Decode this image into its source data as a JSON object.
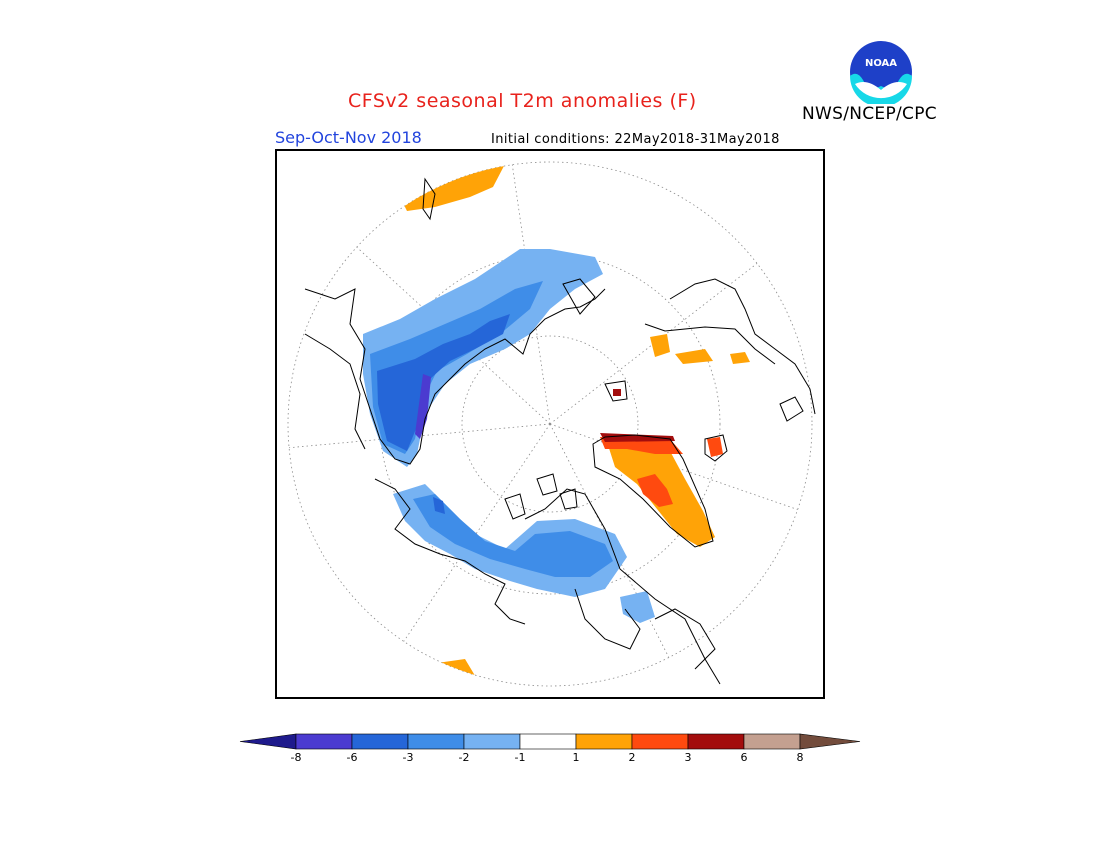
{
  "header": {
    "title": "CFSv2 seasonal T2m anomalies (F)",
    "agency": "NWS/NCEP/CPC",
    "logo_text": "NOAA",
    "season": "Sep-Oct-Nov 2018",
    "initial_conditions": "Initial conditions: 22May2018-31May2018"
  },
  "colors": {
    "title": "#e8221c",
    "season": "#2244dd",
    "ocean": "#ffffff",
    "coast": "#000000",
    "grid": "#8a8a8a"
  },
  "legend": {
    "bins": [
      {
        "color": "#1e1a8c",
        "label": "-8"
      },
      {
        "color": "#4b3bd0",
        "label": "-6"
      },
      {
        "color": "#2566d8",
        "label": "-3"
      },
      {
        "color": "#3f8de8",
        "label": "-2"
      },
      {
        "color": "#76b2f2",
        "label": "-1"
      },
      {
        "color": "#ffffff",
        "label": "1"
      },
      {
        "color": "#ffa307",
        "label": "2"
      },
      {
        "color": "#ff4a0f",
        "label": "3"
      },
      {
        "color": "#a30d0d",
        "label": "6"
      },
      {
        "color": "#c4a090",
        "label": "8"
      },
      {
        "color": "#734c3c",
        "label": ""
      }
    ]
  }
}
